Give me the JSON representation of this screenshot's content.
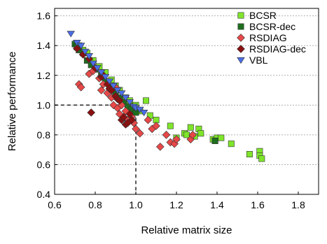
{
  "chart_data": {
    "type": "scatter",
    "xlabel": "Relative matrix size",
    "ylabel": "Relative performance",
    "xlim": [
      0.6,
      1.9
    ],
    "ylim": [
      0.4,
      1.65
    ],
    "xticks": [
      "0.6",
      "0.8",
      "1.0",
      "1.2",
      "1.4",
      "1.6",
      "1.8"
    ],
    "xtick_values": [
      0.6,
      0.8,
      1.0,
      1.2,
      1.4,
      1.6,
      1.8
    ],
    "yticks": [
      "0.4",
      "0.6",
      "0.8",
      "1.0",
      "1.2",
      "1.4",
      "1.6"
    ],
    "ytick_values": [
      0.4,
      0.6,
      0.8,
      1.0,
      1.2,
      1.4,
      1.6
    ],
    "grid": "horizontal-dotted",
    "legend_position": "top-right",
    "reference_point": [
      1.0,
      1.0
    ],
    "series": [
      {
        "name": "BCSR",
        "marker": "square",
        "color": "#7fe52a",
        "points": [
          [
            0.72,
            1.4
          ],
          [
            0.74,
            1.37
          ],
          [
            0.76,
            1.35
          ],
          [
            0.79,
            1.3
          ],
          [
            0.82,
            1.26
          ],
          [
            0.85,
            1.22
          ],
          [
            0.88,
            1.17
          ],
          [
            0.9,
            1.13
          ],
          [
            0.92,
            1.1
          ],
          [
            0.95,
            1.05
          ],
          [
            0.97,
            1.03
          ],
          [
            1.0,
            1.0
          ],
          [
            1.02,
            0.96
          ],
          [
            1.05,
            1.03
          ],
          [
            1.07,
            0.93
          ],
          [
            1.1,
            0.9
          ],
          [
            1.17,
            0.86
          ],
          [
            1.2,
            0.78
          ],
          [
            1.24,
            0.81
          ],
          [
            1.25,
            0.8
          ],
          [
            1.27,
            0.85
          ],
          [
            1.29,
            0.79
          ],
          [
            1.31,
            0.84
          ],
          [
            1.32,
            0.81
          ],
          [
            1.38,
            0.77
          ],
          [
            1.39,
            0.76
          ],
          [
            1.4,
            0.78
          ],
          [
            1.42,
            0.78
          ],
          [
            1.47,
            0.74
          ],
          [
            1.56,
            0.67
          ],
          [
            1.61,
            0.69
          ],
          [
            1.61,
            0.66
          ],
          [
            1.62,
            0.64
          ]
        ]
      },
      {
        "name": "BCSR-dec",
        "marker": "square",
        "color": "#1e6e1e",
        "points": [
          [
            0.7,
            1.41
          ],
          [
            0.71,
            1.39
          ],
          [
            0.72,
            1.37
          ],
          [
            0.74,
            1.35
          ],
          [
            0.76,
            1.3
          ],
          [
            0.78,
            1.27
          ],
          [
            0.8,
            1.24
          ],
          [
            0.83,
            1.2
          ],
          [
            0.85,
            1.16
          ],
          [
            0.87,
            1.12
          ],
          [
            0.9,
            1.08
          ],
          [
            0.92,
            1.05
          ],
          [
            0.94,
            1.02
          ],
          [
            0.96,
            0.99
          ],
          [
            0.98,
            0.97
          ],
          [
            1.0,
            0.95
          ],
          [
            1.39,
            0.76
          ]
        ]
      },
      {
        "name": "RSDIAG",
        "marker": "diamond",
        "color": "#e84848",
        "points": [
          [
            0.72,
            1.14
          ],
          [
            0.73,
            1.12
          ],
          [
            0.77,
            1.21
          ],
          [
            0.79,
            1.23
          ],
          [
            0.82,
            1.18
          ],
          [
            0.83,
            1.1
          ],
          [
            0.84,
            1.14
          ],
          [
            0.86,
            1.08
          ],
          [
            0.88,
            1.05
          ],
          [
            0.89,
            1.0
          ],
          [
            0.9,
            1.12
          ],
          [
            0.91,
            0.98
          ],
          [
            0.92,
            0.94
          ],
          [
            0.93,
            1.0
          ],
          [
            0.95,
            0.96
          ],
          [
            0.96,
            0.9
          ],
          [
            0.98,
            0.92
          ],
          [
            0.99,
            0.88
          ],
          [
            1.0,
            0.84
          ],
          [
            1.02,
            0.81
          ],
          [
            1.06,
            0.9
          ],
          [
            1.08,
            0.84
          ],
          [
            1.1,
            0.86
          ],
          [
            1.12,
            0.72
          ],
          [
            1.15,
            0.8
          ],
          [
            1.17,
            0.75
          ],
          [
            1.19,
            0.74
          ],
          [
            1.2,
            0.77
          ],
          [
            1.27,
            0.77
          ],
          [
            1.28,
            0.8
          ]
        ]
      },
      {
        "name": "RSDIAG-dec",
        "marker": "diamond",
        "color": "#8b1010",
        "points": [
          [
            0.71,
            1.38
          ],
          [
            0.74,
            1.34
          ],
          [
            0.77,
            1.31
          ],
          [
            0.78,
            0.95
          ],
          [
            0.8,
            1.25
          ],
          [
            0.83,
            1.19
          ],
          [
            0.84,
            1.2
          ],
          [
            0.86,
            1.14
          ],
          [
            0.87,
            1.11
          ],
          [
            0.88,
            1.1
          ],
          [
            0.9,
            1.06
          ],
          [
            0.91,
            1.04
          ],
          [
            0.92,
            1.03
          ],
          [
            0.93,
            0.9
          ],
          [
            0.94,
            0.92
          ],
          [
            0.95,
            0.87
          ],
          [
            0.96,
            0.88
          ],
          [
            0.97,
            0.94
          ],
          [
            0.98,
            0.9
          ]
        ]
      },
      {
        "name": "VBL",
        "marker": "triangle-down",
        "color": "#4c6ee6",
        "points": [
          [
            0.68,
            1.48
          ],
          [
            0.71,
            1.42
          ],
          [
            0.73,
            1.4
          ],
          [
            0.75,
            1.36
          ],
          [
            0.77,
            1.33
          ],
          [
            0.79,
            1.28
          ],
          [
            0.81,
            1.25
          ],
          [
            0.83,
            1.22
          ],
          [
            0.85,
            1.19
          ],
          [
            0.87,
            1.16
          ],
          [
            0.89,
            1.13
          ],
          [
            0.91,
            1.1
          ],
          [
            0.93,
            1.08
          ],
          [
            0.95,
            1.05
          ],
          [
            0.97,
            1.02
          ],
          [
            0.99,
            0.99
          ],
          [
            1.0,
            0.98
          ],
          [
            1.02,
            0.97
          ],
          [
            1.04,
            0.95
          ]
        ]
      }
    ]
  }
}
